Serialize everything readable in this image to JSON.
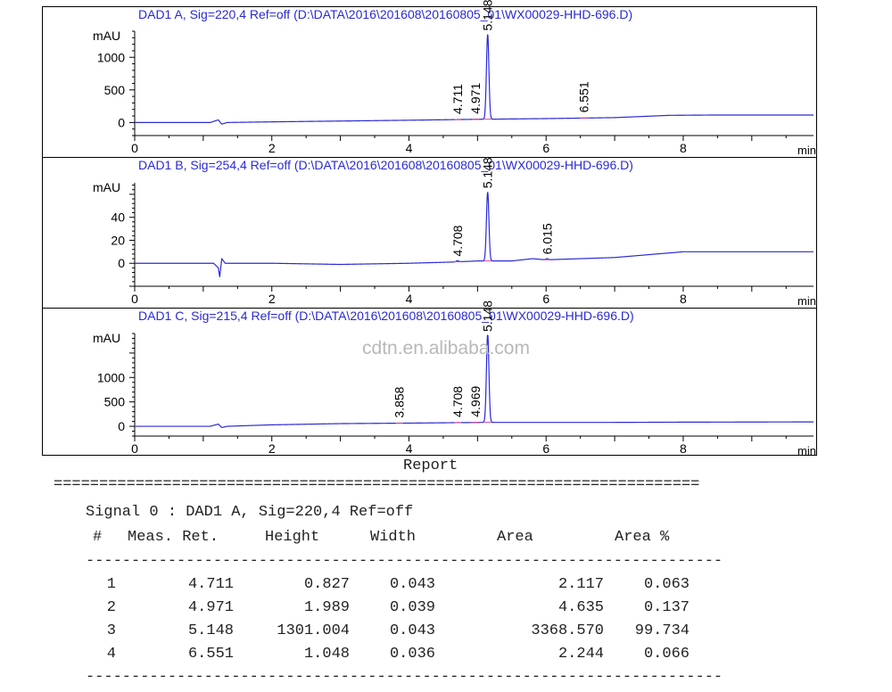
{
  "chart_data": [
    {
      "type": "line",
      "title": "DAD1 A, Sig=220,4 Ref=off (D:\\DATA\\2016\\201608\\20160805_01\\WX00029-HHD-696.D)",
      "ylabel": "mAU",
      "xlabel": "min",
      "xlim": [
        0,
        9.9
      ],
      "ylim": [
        -200,
        1400
      ],
      "x_ticks": [
        "0",
        "2",
        "4",
        "6",
        "8"
      ],
      "y_ticks": [
        "0",
        "500",
        "1000"
      ],
      "baseline": [
        [
          0,
          0
        ],
        [
          1.1,
          0
        ],
        [
          1.22,
          40
        ],
        [
          1.27,
          -25
        ],
        [
          1.35,
          0
        ],
        [
          2,
          10
        ],
        [
          4,
          35
        ],
        [
          4.7,
          45
        ],
        [
          5.1,
          50
        ],
        [
          6,
          60
        ],
        [
          7,
          75
        ],
        [
          7.8,
          110
        ],
        [
          8.5,
          115
        ],
        [
          9.9,
          115
        ]
      ],
      "peaks": [
        {
          "label": "4.711",
          "rt": 4.711,
          "height": 0.827,
          "width": 0.043
        },
        {
          "label": "4.971",
          "rt": 4.971,
          "height": 1.989,
          "width": 0.039
        },
        {
          "label": "5.148",
          "rt": 5.148,
          "height": 1301.004,
          "width": 0.043
        },
        {
          "label": "6.551",
          "rt": 6.551,
          "height": 1.048,
          "width": 0.036
        }
      ]
    },
    {
      "type": "line",
      "title": "DAD1 B, Sig=254,4 Ref=off (D:\\DATA\\2016\\201608\\20160805_01\\WX00029-HHD-696.D)",
      "ylabel": "mAU",
      "xlabel": "min",
      "xlim": [
        0,
        9.9
      ],
      "ylim": [
        -20,
        70
      ],
      "x_ticks": [
        "0",
        "2",
        "4",
        "6",
        "8"
      ],
      "y_ticks": [
        "0",
        "20",
        "40"
      ],
      "baseline": [
        [
          0,
          0
        ],
        [
          1.15,
          0
        ],
        [
          1.22,
          -4
        ],
        [
          1.24,
          -12
        ],
        [
          1.27,
          4
        ],
        [
          1.32,
          0
        ],
        [
          2,
          0
        ],
        [
          3,
          -1
        ],
        [
          4,
          0
        ],
        [
          4.6,
          1
        ],
        [
          5.0,
          2
        ],
        [
          5.5,
          2
        ],
        [
          5.8,
          4
        ],
        [
          6.0,
          3
        ],
        [
          7,
          5
        ],
        [
          7.6,
          8
        ],
        [
          8.0,
          10
        ],
        [
          9.9,
          10
        ]
      ],
      "peaks": [
        {
          "label": "4.708",
          "rt": 4.708,
          "height": 1.0
        },
        {
          "label": "5.148",
          "rt": 5.148,
          "height": 60
        },
        {
          "label": "6.015",
          "rt": 6.015,
          "height": 1.0
        }
      ]
    },
    {
      "type": "line",
      "title": "DAD1 C, Sig=215,4 Ref=off (D:\\DATA\\2016\\201608\\20160805_01\\WX00029-HHD-696.D)",
      "ylabel": "mAU",
      "xlabel": "min",
      "xlim": [
        0,
        9.9
      ],
      "ylim": [
        -200,
        1900
      ],
      "x_ticks": [
        "0",
        "2",
        "4",
        "6",
        "8"
      ],
      "y_ticks": [
        "0",
        "500",
        "1000"
      ],
      "baseline": [
        [
          0,
          0
        ],
        [
          1.1,
          0
        ],
        [
          1.22,
          45
        ],
        [
          1.27,
          -25
        ],
        [
          1.35,
          0
        ],
        [
          2,
          30
        ],
        [
          3,
          55
        ],
        [
          4,
          65
        ],
        [
          5.1,
          80
        ],
        [
          6,
          80
        ],
        [
          7,
          80
        ],
        [
          8,
          85
        ],
        [
          9.9,
          90
        ]
      ],
      "peaks": [
        {
          "label": "3.858",
          "rt": 3.858,
          "height": 1.0
        },
        {
          "label": "4.708",
          "rt": 4.708,
          "height": 1.0
        },
        {
          "label": "4.969",
          "rt": 4.969,
          "height": 1.0
        },
        {
          "label": "5.148",
          "rt": 5.148,
          "height": 1820
        }
      ]
    }
  ],
  "watermark": "cdtn.en.alibaba.com",
  "report": {
    "title": "Report",
    "separator": "=======================================================================",
    "signal_line": "Signal 0 : DAD1 A, Sig=220,4 Ref=off",
    "headers": [
      "#",
      "Meas. Ret.",
      "Height",
      "Width",
      "Area",
      "Area %"
    ],
    "dash_line": "----------------------------------------------------------------------",
    "rows": [
      [
        "1",
        "4.711",
        "0.827",
        "0.043",
        "2.117",
        "0.063"
      ],
      [
        "2",
        "4.971",
        "1.989",
        "0.039",
        "4.635",
        "0.137"
      ],
      [
        "3",
        "5.148",
        "1301.004",
        "0.043",
        "3368.570",
        "99.734"
      ],
      [
        "4",
        "6.551",
        "1.048",
        "0.036",
        "2.244",
        "0.066"
      ]
    ]
  },
  "colors": {
    "trace": "#2a2ad6",
    "title_text": "#2a2ad6",
    "baseline_marker": "#e0408a",
    "axis": "#000000",
    "watermark": "#b8b8b8"
  }
}
